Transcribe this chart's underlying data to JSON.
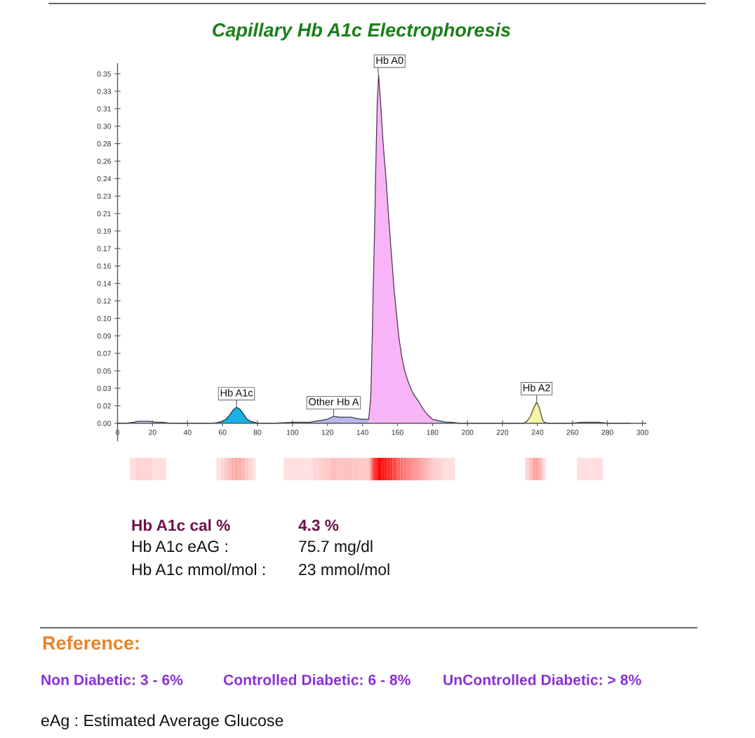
{
  "chart_data": {
    "type": "area",
    "title": "Capillary Hb A1c Electrophoresis",
    "xlim": [
      0,
      302
    ],
    "xticks": [
      0,
      20,
      40,
      60,
      80,
      100,
      120,
      140,
      160,
      180,
      200,
      220,
      240,
      260,
      280,
      300
    ],
    "ylim": [
      -0.0175,
      0.36
    ],
    "yticks": [
      {
        "value": 0,
        "label": "0.00"
      },
      {
        "value": 0.0175,
        "label": "0.02"
      },
      {
        "value": 0.035,
        "label": "0.03"
      },
      {
        "value": 0.0525,
        "label": "0.05"
      },
      {
        "value": 0.07,
        "label": "0.07"
      },
      {
        "value": 0.0875,
        "label": "0.09"
      },
      {
        "value": 0.105,
        "label": "0.10"
      },
      {
        "value": 0.1225,
        "label": "0.12"
      },
      {
        "value": 0.14,
        "label": "0.14"
      },
      {
        "value": 0.1575,
        "label": "0.16"
      },
      {
        "value": 0.175,
        "label": "0.17"
      },
      {
        "value": 0.1925,
        "label": "0.19"
      },
      {
        "value": 0.21,
        "label": "0.21"
      },
      {
        "value": 0.2275,
        "label": "0.23"
      },
      {
        "value": 0.245,
        "label": "0.24"
      },
      {
        "value": 0.2625,
        "label": "0.26"
      },
      {
        "value": 0.28,
        "label": "0.28"
      },
      {
        "value": 0.2975,
        "label": "0.30"
      },
      {
        "value": 0.315,
        "label": "0.31"
      },
      {
        "value": 0.3325,
        "label": "0.33"
      },
      {
        "value": 0.35,
        "label": "0.35"
      }
    ],
    "series": [
      {
        "color": "#c4c4f0",
        "x": [
          0,
          5,
          9,
          12,
          15,
          18,
          22,
          26,
          30,
          40,
          50,
          55,
          58
        ],
        "values": [
          0,
          0,
          0.001,
          0.002,
          0.002,
          0.002,
          0.001,
          0.001,
          0,
          0,
          0,
          0,
          0.001
        ]
      },
      {
        "color": "#1ab2e6",
        "x": [
          58,
          60,
          62,
          64,
          66,
          68,
          70,
          72,
          74,
          76,
          78,
          80
        ],
        "values": [
          0.001,
          0.002,
          0.004,
          0.008,
          0.013,
          0.016,
          0.014,
          0.009,
          0.004,
          0.002,
          0.001,
          0
        ]
      },
      {
        "color": "#c4c4f0",
        "x": [
          80,
          90,
          100,
          105
        ],
        "values": [
          0,
          0,
          0.001,
          0.001
        ]
      },
      {
        "color": "#b8b8ee",
        "x": [
          105,
          110,
          113,
          117,
          120,
          123.5,
          127,
          130,
          133.5,
          136,
          139.5,
          143.5
        ],
        "values": [
          0.001,
          0.001,
          0.002,
          0.003,
          0.004,
          0.007,
          0.006,
          0.006,
          0.006,
          0.005,
          0.004,
          0.004
        ]
      },
      {
        "color": "#f7b5f7",
        "x": [
          143.5,
          144.2,
          144.8,
          145.5,
          146.1,
          147,
          147.5,
          148.4,
          149.2,
          150.4,
          151.8,
          153.2,
          154.6,
          156.1,
          158.1,
          160.8,
          162.5,
          164.1,
          166,
          168,
          170,
          172,
          174,
          176,
          178,
          180,
          182
        ],
        "values": [
          0.004,
          0.015,
          0.03,
          0.08,
          0.133,
          0.2,
          0.249,
          0.32,
          0.349,
          0.32,
          0.28,
          0.25,
          0.215,
          0.179,
          0.133,
          0.086,
          0.066,
          0.053,
          0.042,
          0.033,
          0.027,
          0.022,
          0.016,
          0.011,
          0.007,
          0.004,
          0.003
        ]
      },
      {
        "color": "#c4c4f0",
        "x": [
          182,
          185,
          188,
          191,
          195,
          200,
          210,
          220,
          232
        ],
        "values": [
          0.003,
          0.002,
          0.001,
          0.001,
          0,
          0,
          0,
          0,
          0
        ]
      },
      {
        "color": "#f7f3a6",
        "x": [
          232,
          234,
          236,
          238,
          239.5,
          241,
          242,
          243,
          244,
          246
        ],
        "values": [
          0,
          0.002,
          0.007,
          0.016,
          0.021,
          0.016,
          0.009,
          0.003,
          0.001,
          0
        ]
      },
      {
        "color": "#c4c4f0",
        "x": [
          246,
          260,
          265,
          270,
          275,
          280,
          293
        ],
        "values": [
          0,
          0,
          0.001,
          0.001,
          0.001,
          0,
          0
        ]
      }
    ],
    "annotations": [
      {
        "text": "Hb A1c",
        "x": 68,
        "y": 0.016
      },
      {
        "text": "Other Hb A",
        "x": 123.5,
        "y": 0.007
      },
      {
        "text": "Hb A0",
        "x": 149.2,
        "y": 0.349
      },
      {
        "text": "Hb A2",
        "x": 239.5,
        "y": 0.021
      },
      "Hb A1c cal %",
      "4.3 %",
      "Hb A1c eAG :",
      "75.7 mg/dl",
      "Hb A1c mmol/mol :",
      "23 mmol/mol",
      "Reference:",
      "Non Diabetic: 3 - 6%",
      "Controlled Diabetic: 6 - 8%",
      "UnControlled Diabetic: > 8%",
      "eAg : Estimated Average Glucose"
    ]
  }
}
